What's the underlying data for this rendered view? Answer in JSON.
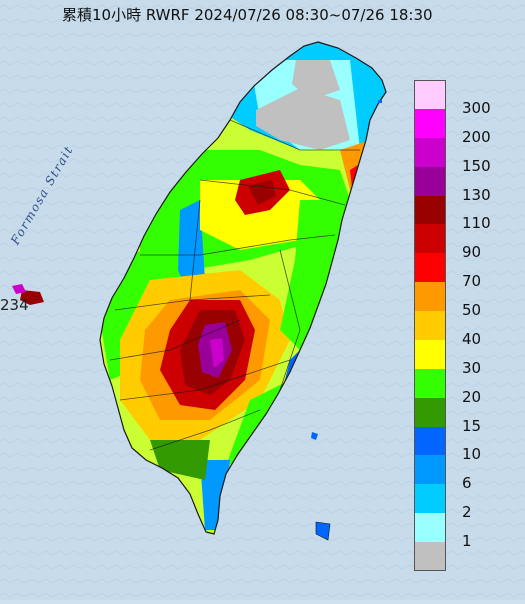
{
  "title": "累積10小時 RWRF 2024/07/26 08:30~07/26 18:30",
  "strait_label": "Formosa Strait",
  "offshore_value": "234",
  "legend": {
    "levels": [
      "300",
      "200",
      "150",
      "130",
      "110",
      "90",
      "70",
      "50",
      "40",
      "30",
      "20",
      "15",
      "10",
      "6",
      "2",
      "1"
    ],
    "colors": [
      "#ffccff",
      "#ff00ff",
      "#cc00cc",
      "#990099",
      "#990000",
      "#cc0000",
      "#ff0000",
      "#ff9900",
      "#ffcc00",
      "#ffff00",
      "#33ff00",
      "#339900",
      "#0066ff",
      "#0099ff",
      "#00ccff",
      "#99ffff",
      "#c0c0c0"
    ]
  },
  "colors": {
    "sea": "#cfe0ee",
    "land_base": "#9fd9d0",
    "boundary": "#1a1a1a"
  }
}
